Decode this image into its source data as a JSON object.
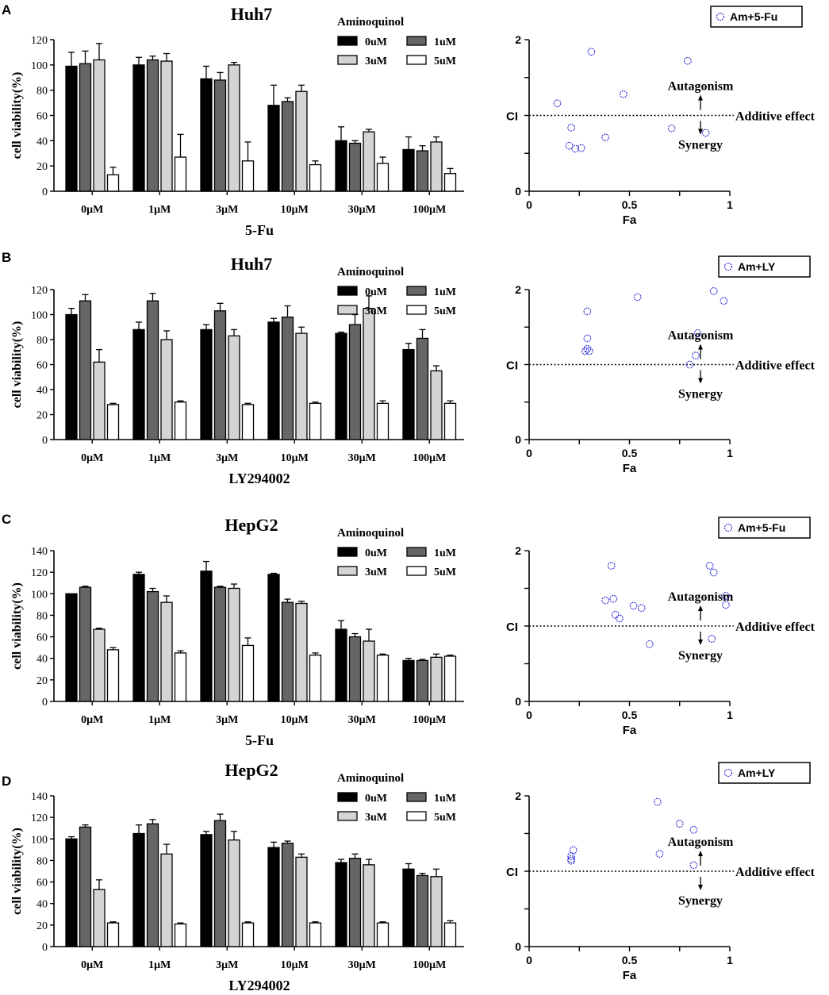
{
  "colors": {
    "bar_series": [
      "#000000",
      "#666666",
      "#d4d4d4",
      "#ffffff"
    ],
    "point": "#2a2ad8"
  },
  "chart_data": [
    {
      "panel": "A",
      "type": "bar",
      "title": "Huh7",
      "xlabel": "5-Fu",
      "ylabel": "cell viability(%)",
      "ylim": [
        0,
        120
      ],
      "yticks": [
        0,
        20,
        40,
        60,
        80,
        100,
        120
      ],
      "categories": [
        "0μM",
        "1μM",
        "3μM",
        "10μM",
        "30μM",
        "100μM"
      ],
      "legend_title": "Aminoquinol",
      "series": [
        {
          "name": "0uM",
          "values": [
            99,
            100,
            89,
            68,
            40,
            33
          ],
          "errors": [
            11,
            6,
            10,
            16,
            11,
            10
          ]
        },
        {
          "name": "1uM",
          "values": [
            101,
            104,
            88,
            71,
            38,
            32
          ],
          "errors": [
            10,
            3,
            6,
            3,
            2,
            4
          ]
        },
        {
          "name": "3uM",
          "values": [
            104,
            103,
            100,
            79,
            47,
            39
          ],
          "errors": [
            13,
            6,
            2,
            5,
            2,
            4
          ]
        },
        {
          "name": "5uM",
          "values": [
            13,
            27,
            24,
            21,
            22,
            14
          ],
          "errors": [
            6,
            18,
            15,
            3,
            5,
            4
          ]
        }
      ]
    },
    {
      "panel": "A",
      "type": "scatter",
      "legend": "Am+5-Fu",
      "xlabel": "Fa",
      "ylabel": "CI",
      "xlim": [
        0,
        1
      ],
      "xticks": [
        "0",
        "0.5",
        "1"
      ],
      "ylim": [
        0,
        2
      ],
      "yticks": [
        "0",
        "2"
      ],
      "reference_line": {
        "y": 1,
        "label": "Additive effect"
      },
      "annotations": {
        "above": "Autagonism",
        "below": "Synergy"
      },
      "points": [
        {
          "x": 0.14,
          "y": 1.16
        },
        {
          "x": 0.2,
          "y": 0.6
        },
        {
          "x": 0.21,
          "y": 0.84
        },
        {
          "x": 0.23,
          "y": 0.56
        },
        {
          "x": 0.26,
          "y": 0.57
        },
        {
          "x": 0.31,
          "y": 1.84
        },
        {
          "x": 0.38,
          "y": 0.71
        },
        {
          "x": 0.47,
          "y": 1.28
        },
        {
          "x": 0.71,
          "y": 0.83
        },
        {
          "x": 0.79,
          "y": 1.72
        },
        {
          "x": 0.88,
          "y": 0.77
        }
      ]
    },
    {
      "panel": "B",
      "type": "bar",
      "title": "Huh7",
      "xlabel": "LY294002",
      "ylabel": "cell viability(%)",
      "ylim": [
        0,
        120
      ],
      "yticks": [
        0,
        20,
        40,
        60,
        80,
        100,
        120
      ],
      "categories": [
        "0μM",
        "1μM",
        "3μM",
        "10μM",
        "30μM",
        "100μM"
      ],
      "legend_title": "Aminoquinol",
      "series": [
        {
          "name": "0uM",
          "values": [
            100,
            88,
            88,
            94,
            85,
            72
          ],
          "errors": [
            5,
            6,
            4,
            3,
            1,
            5
          ]
        },
        {
          "name": "1uM",
          "values": [
            111,
            111,
            103,
            98,
            92,
            81
          ],
          "errors": [
            5,
            6,
            6,
            9,
            8,
            7
          ]
        },
        {
          "name": "3uM",
          "values": [
            62,
            80,
            83,
            85,
            105,
            55
          ],
          "errors": [
            10,
            7,
            5,
            5,
            10,
            4
          ]
        },
        {
          "name": "5uM",
          "values": [
            28,
            30,
            28,
            29,
            29,
            29
          ],
          "errors": [
            1,
            1,
            1,
            1,
            2,
            2
          ]
        }
      ]
    },
    {
      "panel": "B",
      "type": "scatter",
      "legend": "Am+LY",
      "xlabel": "Fa",
      "ylabel": "CI",
      "xlim": [
        0,
        1
      ],
      "xticks": [
        "0",
        "0.5",
        "1"
      ],
      "ylim": [
        0,
        2
      ],
      "yticks": [
        "0",
        "2"
      ],
      "reference_line": {
        "y": 1,
        "label": "Additive effect"
      },
      "annotations": {
        "above": "Autagonism",
        "below": "Synergy"
      },
      "points": [
        {
          "x": 0.28,
          "y": 1.18
        },
        {
          "x": 0.29,
          "y": 1.21
        },
        {
          "x": 0.3,
          "y": 1.18
        },
        {
          "x": 0.29,
          "y": 1.35
        },
        {
          "x": 0.29,
          "y": 1.71
        },
        {
          "x": 0.54,
          "y": 1.9
        },
        {
          "x": 0.8,
          "y": 1.0
        },
        {
          "x": 0.83,
          "y": 1.12
        },
        {
          "x": 0.84,
          "y": 1.42
        },
        {
          "x": 0.92,
          "y": 1.98
        },
        {
          "x": 0.97,
          "y": 1.85
        }
      ]
    },
    {
      "panel": "C",
      "type": "bar",
      "title": "HepG2",
      "xlabel": "5-Fu",
      "ylabel": "cell viability(%)",
      "ylim": [
        0,
        140
      ],
      "yticks": [
        0,
        20,
        40,
        60,
        80,
        100,
        120,
        140
      ],
      "categories": [
        "0μM",
        "1μM",
        "3μM",
        "10μM",
        "30μM",
        "100μM"
      ],
      "legend_title": "Aminoquinol",
      "series": [
        {
          "name": "0uM",
          "values": [
            100,
            118,
            121,
            118,
            67,
            38
          ],
          "errors": [
            0,
            2,
            9,
            1,
            8,
            2
          ]
        },
        {
          "name": "1uM",
          "values": [
            106,
            102,
            106,
            92,
            60,
            38
          ],
          "errors": [
            1,
            3,
            1,
            3,
            3,
            1
          ]
        },
        {
          "name": "3uM",
          "values": [
            67,
            92,
            105,
            91,
            56,
            41
          ],
          "errors": [
            1,
            6,
            4,
            2,
            11,
            3
          ]
        },
        {
          "name": "5uM",
          "values": [
            48,
            45,
            52,
            43,
            43,
            42
          ],
          "errors": [
            2,
            2,
            7,
            2,
            1,
            1
          ]
        }
      ]
    },
    {
      "panel": "C",
      "type": "scatter",
      "legend": "Am+5-Fu",
      "xlabel": "Fa",
      "ylabel": "CI",
      "xlim": [
        0,
        1
      ],
      "xticks": [
        "0",
        "0.5",
        "1"
      ],
      "ylim": [
        0,
        2
      ],
      "yticks": [
        "0",
        "2"
      ],
      "reference_line": {
        "y": 1,
        "label": "Additive effect"
      },
      "annotations": {
        "above": "Autagonism",
        "below": "Synergy"
      },
      "points": [
        {
          "x": 0.38,
          "y": 1.34
        },
        {
          "x": 0.41,
          "y": 1.8
        },
        {
          "x": 0.42,
          "y": 1.36
        },
        {
          "x": 0.43,
          "y": 1.15
        },
        {
          "x": 0.45,
          "y": 1.1
        },
        {
          "x": 0.52,
          "y": 1.27
        },
        {
          "x": 0.56,
          "y": 1.24
        },
        {
          "x": 0.6,
          "y": 0.76
        },
        {
          "x": 0.9,
          "y": 1.8
        },
        {
          "x": 0.91,
          "y": 0.83
        },
        {
          "x": 0.92,
          "y": 1.71
        },
        {
          "x": 0.98,
          "y": 1.4
        },
        {
          "x": 0.98,
          "y": 1.28
        }
      ]
    },
    {
      "panel": "D",
      "type": "bar",
      "title": "HepG2",
      "xlabel": "LY294002",
      "ylabel": "cell viability(%)",
      "ylim": [
        0,
        140
      ],
      "yticks": [
        0,
        20,
        40,
        60,
        80,
        100,
        120,
        140
      ],
      "categories": [
        "0μM",
        "1μM",
        "3μM",
        "10μM",
        "30μM",
        "100μM"
      ],
      "legend_title": "Aminoquinol",
      "series": [
        {
          "name": "0uM",
          "values": [
            100,
            105,
            104,
            92,
            78,
            72
          ],
          "errors": [
            2,
            8,
            3,
            5,
            3,
            5
          ]
        },
        {
          "name": "1uM",
          "values": [
            111,
            114,
            117,
            96,
            82,
            66
          ],
          "errors": [
            2,
            4,
            6,
            2,
            4,
            2
          ]
        },
        {
          "name": "3uM",
          "values": [
            53,
            86,
            99,
            83,
            76,
            65
          ],
          "errors": [
            9,
            9,
            8,
            3,
            5,
            7
          ]
        },
        {
          "name": "5uM",
          "values": [
            22,
            21,
            22,
            22,
            22,
            22
          ],
          "errors": [
            1,
            1,
            1,
            1,
            1,
            2
          ]
        }
      ]
    },
    {
      "panel": "D",
      "type": "scatter",
      "legend": "Am+LY",
      "xlabel": "Fa",
      "ylabel": "CI",
      "xlim": [
        0,
        1
      ],
      "xticks": [
        "0",
        "0.5",
        "1"
      ],
      "ylim": [
        0,
        2
      ],
      "yticks": [
        "0",
        "2"
      ],
      "reference_line": {
        "y": 1,
        "label": "Additive effect"
      },
      "annotations": {
        "above": "Autagonism",
        "below": "Synergy"
      },
      "points": [
        {
          "x": 0.21,
          "y": 1.14
        },
        {
          "x": 0.21,
          "y": 1.16
        },
        {
          "x": 0.21,
          "y": 1.2
        },
        {
          "x": 0.22,
          "y": 1.28
        },
        {
          "x": 0.64,
          "y": 1.92
        },
        {
          "x": 0.65,
          "y": 1.23
        },
        {
          "x": 0.75,
          "y": 1.63
        },
        {
          "x": 0.82,
          "y": 1.55
        },
        {
          "x": 0.82,
          "y": 1.08
        }
      ]
    }
  ]
}
